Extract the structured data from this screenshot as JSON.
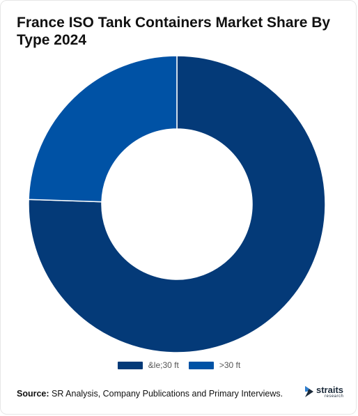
{
  "title": "France ISO Tank Containers Market Share By Type 2024",
  "chart_data": {
    "type": "pie",
    "donut": true,
    "title": "France ISO Tank Containers Market Share By Type 2024",
    "categories": [
      "&le;30 ft",
      ">30 ft"
    ],
    "values": [
      75.5,
      24.5
    ],
    "colors": [
      "#043a78",
      "#0052a5"
    ],
    "legend_position": "bottom"
  },
  "legend": {
    "items": [
      {
        "label": "&le;30 ft",
        "color": "#043a78"
      },
      {
        "label": ">30 ft",
        "color": "#0052a5"
      }
    ]
  },
  "source": {
    "label": "Source:",
    "text": " SR Analysis, Company Publications and Primary Interviews."
  },
  "logo": {
    "word": "straits",
    "sub": "research"
  }
}
